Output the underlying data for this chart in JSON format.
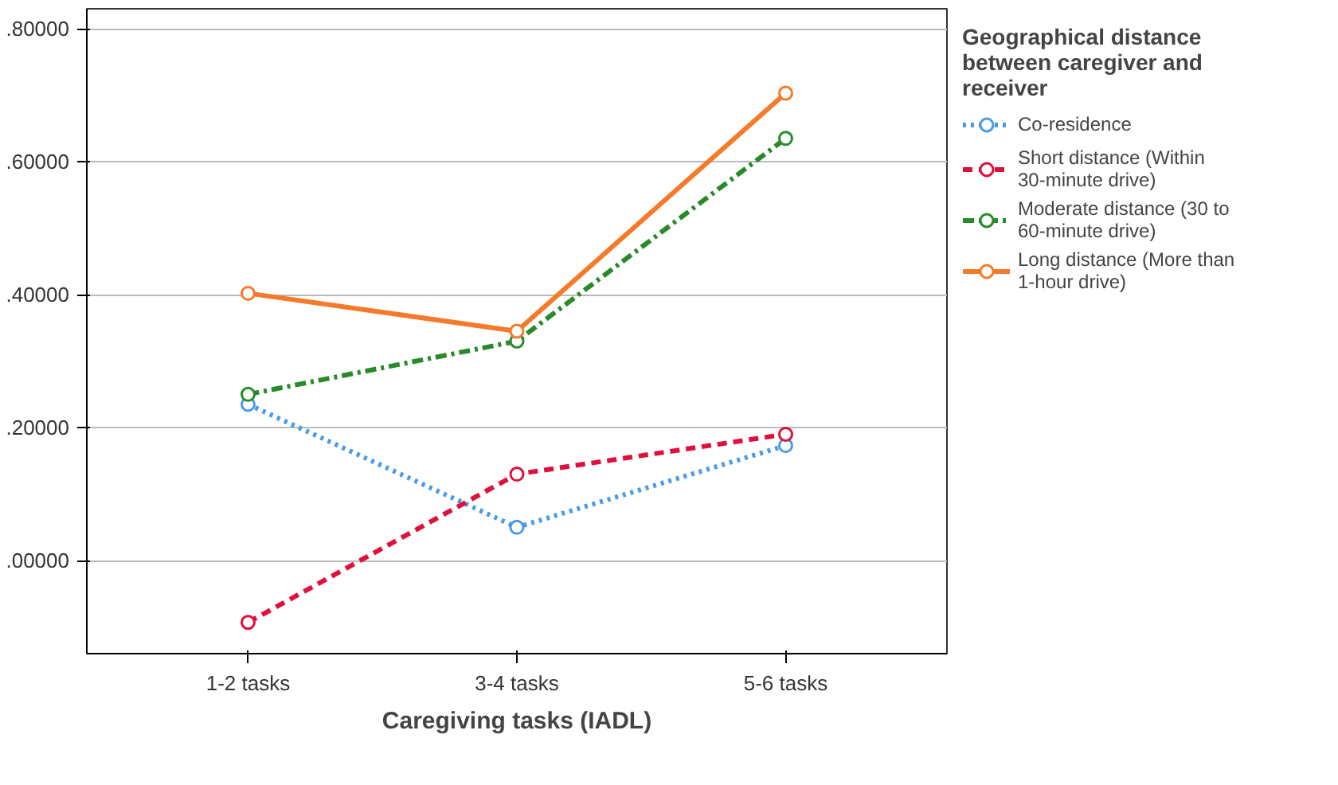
{
  "chart_data": {
    "type": "line",
    "xlabel": "Caregiving tasks (IADL)",
    "legend_title": "Geographical distance between caregiver and receiver",
    "categories": [
      "1-2 tasks",
      "3-4 tasks",
      "5-6 tasks"
    ],
    "series": [
      {
        "name": "Co-residence",
        "color": "#4a9be8",
        "values": [
          0.235,
          0.05,
          0.173
        ],
        "line_style": "dotted"
      },
      {
        "name": "Short distance (Within 30-minute drive)",
        "color": "#e0103c",
        "values": [
          -0.093,
          0.13,
          0.19
        ],
        "line_style": "dashed"
      },
      {
        "name": "Moderate distance (30 to 60-minute drive)",
        "color": "#2a8a2a",
        "values": [
          0.25,
          0.33,
          0.635
        ],
        "line_style": "dashdot"
      },
      {
        "name": "Long distance (More than 1-hour drive)",
        "color": "#f57a2a",
        "values": [
          0.402,
          0.345,
          0.703
        ],
        "line_style": "solid"
      }
    ],
    "ylim": [
      -0.14,
      0.83
    ],
    "yticks": [
      {
        "value": 0,
        "label": ".00000"
      },
      {
        "value": 0.2,
        "label": ".20000"
      },
      {
        "value": 0.4,
        "label": ".40000"
      },
      {
        "value": 0.6,
        "label": ".60000"
      },
      {
        "value": 0.8,
        "label": ".80000"
      }
    ],
    "grid": "y",
    "legend": "right",
    "marker": "circle"
  }
}
